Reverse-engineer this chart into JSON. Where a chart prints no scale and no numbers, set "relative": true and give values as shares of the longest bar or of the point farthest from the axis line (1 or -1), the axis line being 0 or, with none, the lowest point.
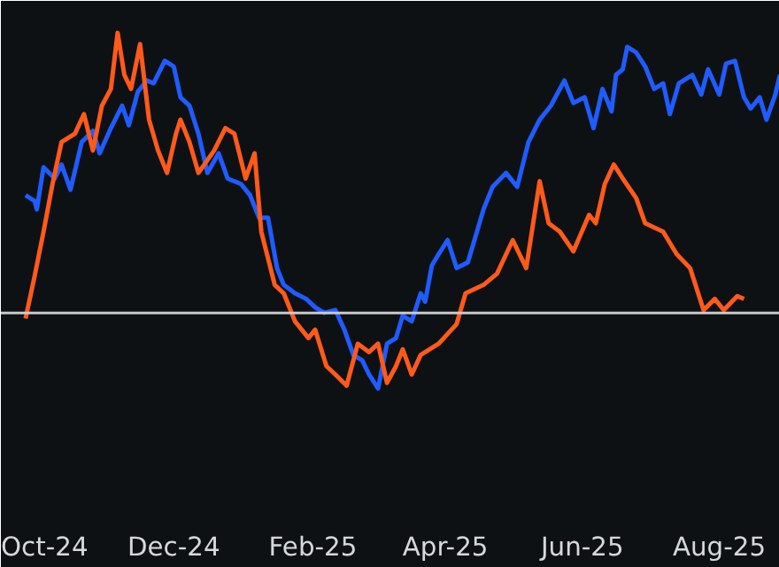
{
  "chart_data": {
    "type": "line",
    "relative": true,
    "line_style": "solid",
    "marker": "none",
    "xlim": [
      "2024-09-15",
      "2025-08-28"
    ],
    "xticks": [
      {
        "value": "2024-10-01",
        "label": "Oct-24"
      },
      {
        "value": "2024-12-01",
        "label": "Dec-24"
      },
      {
        "value": "2025-02-01",
        "label": "Feb-25"
      },
      {
        "value": "2025-04-01",
        "label": "Apr-25"
      },
      {
        "value": "2025-06-01",
        "label": "Jun-25"
      },
      {
        "value": "2025-08-01",
        "label": "Aug-25"
      }
    ],
    "ref_lines": [
      {
        "axis": "y",
        "value": 0,
        "color": "#c8c8c8"
      }
    ],
    "series": [
      {
        "color": "#1f5cff",
        "x": [
          "2024-09-26",
          "2024-09-30",
          "2024-10-01",
          "2024-10-04",
          "2024-10-09",
          "2024-10-12",
          "2024-10-16",
          "2024-10-21",
          "2024-10-26",
          "2024-10-29",
          "2024-11-03",
          "2024-11-08",
          "2024-11-11",
          "2024-11-15",
          "2024-11-19",
          "2024-11-22",
          "2024-11-27",
          "2024-12-01",
          "2024-12-04",
          "2024-12-08",
          "2024-12-12",
          "2024-12-16",
          "2024-12-21",
          "2024-12-25",
          "2024-12-31",
          "2025-01-04",
          "2025-01-08",
          "2025-01-12",
          "2025-01-16",
          "2025-01-19",
          "2025-01-24",
          "2025-01-29",
          "2025-02-02",
          "2025-02-06",
          "2025-02-11",
          "2025-02-15",
          "2025-02-19",
          "2025-02-23",
          "2025-02-26",
          "2025-03-02",
          "2025-03-06",
          "2025-03-10",
          "2025-03-13",
          "2025-03-17",
          "2025-03-21",
          "2025-03-23",
          "2025-03-26",
          "2025-03-29",
          "2025-04-02",
          "2025-04-06",
          "2025-04-11",
          "2025-04-18",
          "2025-04-22",
          "2025-04-28",
          "2025-05-03",
          "2025-05-08",
          "2025-05-13",
          "2025-05-18",
          "2025-05-24",
          "2025-05-28",
          "2025-06-02",
          "2025-06-06",
          "2025-06-10",
          "2025-06-14",
          "2025-06-16",
          "2025-06-19",
          "2025-06-21",
          "2025-06-25",
          "2025-06-29",
          "2025-07-03",
          "2025-07-07",
          "2025-07-10",
          "2025-07-14",
          "2025-07-20",
          "2025-07-24",
          "2025-07-27",
          "2025-08-01",
          "2025-08-04",
          "2025-08-08",
          "2025-08-12",
          "2025-08-15",
          "2025-08-19",
          "2025-08-22",
          "2025-08-26",
          "2025-08-28"
        ],
        "values": [
          0.42,
          0.4,
          0.37,
          0.52,
          0.48,
          0.53,
          0.44,
          0.61,
          0.65,
          0.57,
          0.66,
          0.74,
          0.67,
          0.79,
          0.83,
          0.82,
          0.9,
          0.88,
          0.77,
          0.74,
          0.64,
          0.5,
          0.57,
          0.48,
          0.46,
          0.42,
          0.34,
          0.34,
          0.16,
          0.1,
          0.07,
          0.05,
          0.02,
          0,
          0.01,
          -0.06,
          -0.15,
          -0.17,
          -0.22,
          -0.27,
          -0.11,
          -0.09,
          -0.01,
          -0.03,
          0.07,
          0.04,
          0.17,
          0.21,
          0.26,
          0.16,
          0.18,
          0.37,
          0.45,
          0.5,
          0.45,
          0.61,
          0.69,
          0.74,
          0.83,
          0.75,
          0.77,
          0.66,
          0.8,
          0.72,
          0.85,
          0.87,
          0.95,
          0.93,
          0.88,
          0.8,
          0.82,
          0.71,
          0.82,
          0.85,
          0.78,
          0.87,
          0.78,
          0.89,
          0.9,
          0.77,
          0.73,
          0.77,
          0.69,
          0.78,
          0.85
        ]
      },
      {
        "color": "#ff5a1a",
        "x": [
          "2024-09-26",
          "2024-09-30",
          "2024-10-04",
          "2024-10-08",
          "2024-10-12",
          "2024-10-18",
          "2024-10-22",
          "2024-10-26",
          "2024-10-30",
          "2024-11-03",
          "2024-11-06",
          "2024-11-09",
          "2024-11-12",
          "2024-11-16",
          "2024-11-20",
          "2024-11-24",
          "2024-11-28",
          "2024-12-02",
          "2024-12-04",
          "2024-12-08",
          "2024-12-12",
          "2024-12-19",
          "2024-12-24",
          "2024-12-28",
          "2025-01-02",
          "2025-01-06",
          "2025-01-09",
          "2025-01-15",
          "2025-01-19",
          "2025-01-24",
          "2025-01-30",
          "2025-02-02",
          "2025-02-07",
          "2025-02-11",
          "2025-02-16",
          "2025-02-21",
          "2025-02-26",
          "2025-03-02",
          "2025-03-06",
          "2025-03-10",
          "2025-03-13",
          "2025-03-17",
          "2025-03-21",
          "2025-03-29",
          "2025-04-06",
          "2025-04-10",
          "2025-04-18",
          "2025-04-24",
          "2025-05-01",
          "2025-05-07",
          "2025-05-13",
          "2025-05-17",
          "2025-05-22",
          "2025-05-28",
          "2025-06-04",
          "2025-06-07",
          "2025-06-11",
          "2025-06-15",
          "2025-06-19",
          "2025-06-25",
          "2025-06-29",
          "2025-07-07",
          "2025-07-13",
          "2025-07-19",
          "2025-07-25",
          "2025-07-30",
          "2025-08-03",
          "2025-08-09",
          "2025-08-12"
        ],
        "values": [
          -0.02,
          0.13,
          0.29,
          0.46,
          0.61,
          0.64,
          0.71,
          0.58,
          0.74,
          0.8,
          1.0,
          0.85,
          0.8,
          0.96,
          0.69,
          0.58,
          0.5,
          0.64,
          0.69,
          0.61,
          0.5,
          0.58,
          0.66,
          0.64,
          0.48,
          0.57,
          0.29,
          0.1,
          0.07,
          -0.03,
          -0.09,
          -0.06,
          -0.19,
          -0.22,
          -0.26,
          -0.11,
          -0.14,
          -0.11,
          -0.25,
          -0.19,
          -0.13,
          -0.22,
          -0.15,
          -0.11,
          -0.04,
          0.07,
          0.1,
          0.14,
          0.26,
          0.16,
          0.47,
          0.32,
          0.29,
          0.22,
          0.35,
          0.32,
          0.46,
          0.53,
          0.48,
          0.41,
          0.32,
          0.29,
          0.21,
          0.16,
          0.01,
          0.05,
          0.01,
          0.06,
          0.05
        ]
      }
    ]
  }
}
